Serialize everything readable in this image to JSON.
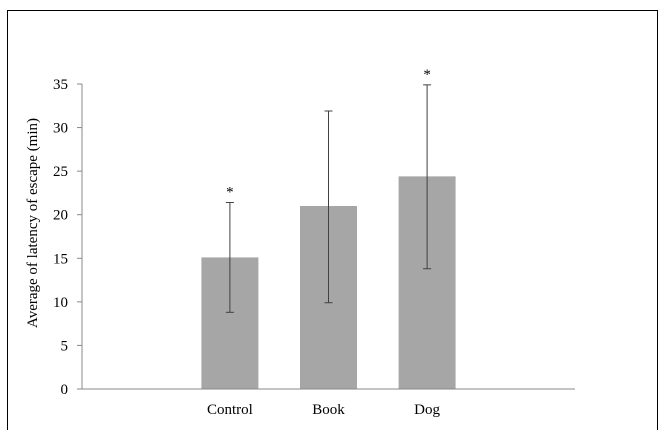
{
  "chart_data": {
    "type": "bar",
    "title": "",
    "xlabel": "",
    "ylabel": "Average of latency of escape (min)",
    "categories": [
      "Control",
      "Book",
      "Dog"
    ],
    "values": [
      15.1,
      21.0,
      24.4
    ],
    "error_low": [
      8.8,
      9.9,
      13.8
    ],
    "error_high": [
      21.4,
      31.9,
      34.9
    ],
    "annotations": [
      "*",
      "",
      "*"
    ],
    "ylim": [
      0,
      35
    ],
    "yticks": [
      0,
      5,
      10,
      15,
      20,
      25,
      30,
      35
    ],
    "grid": false,
    "bar_color": "#a6a6a6",
    "error_bar_color": "#404040"
  }
}
